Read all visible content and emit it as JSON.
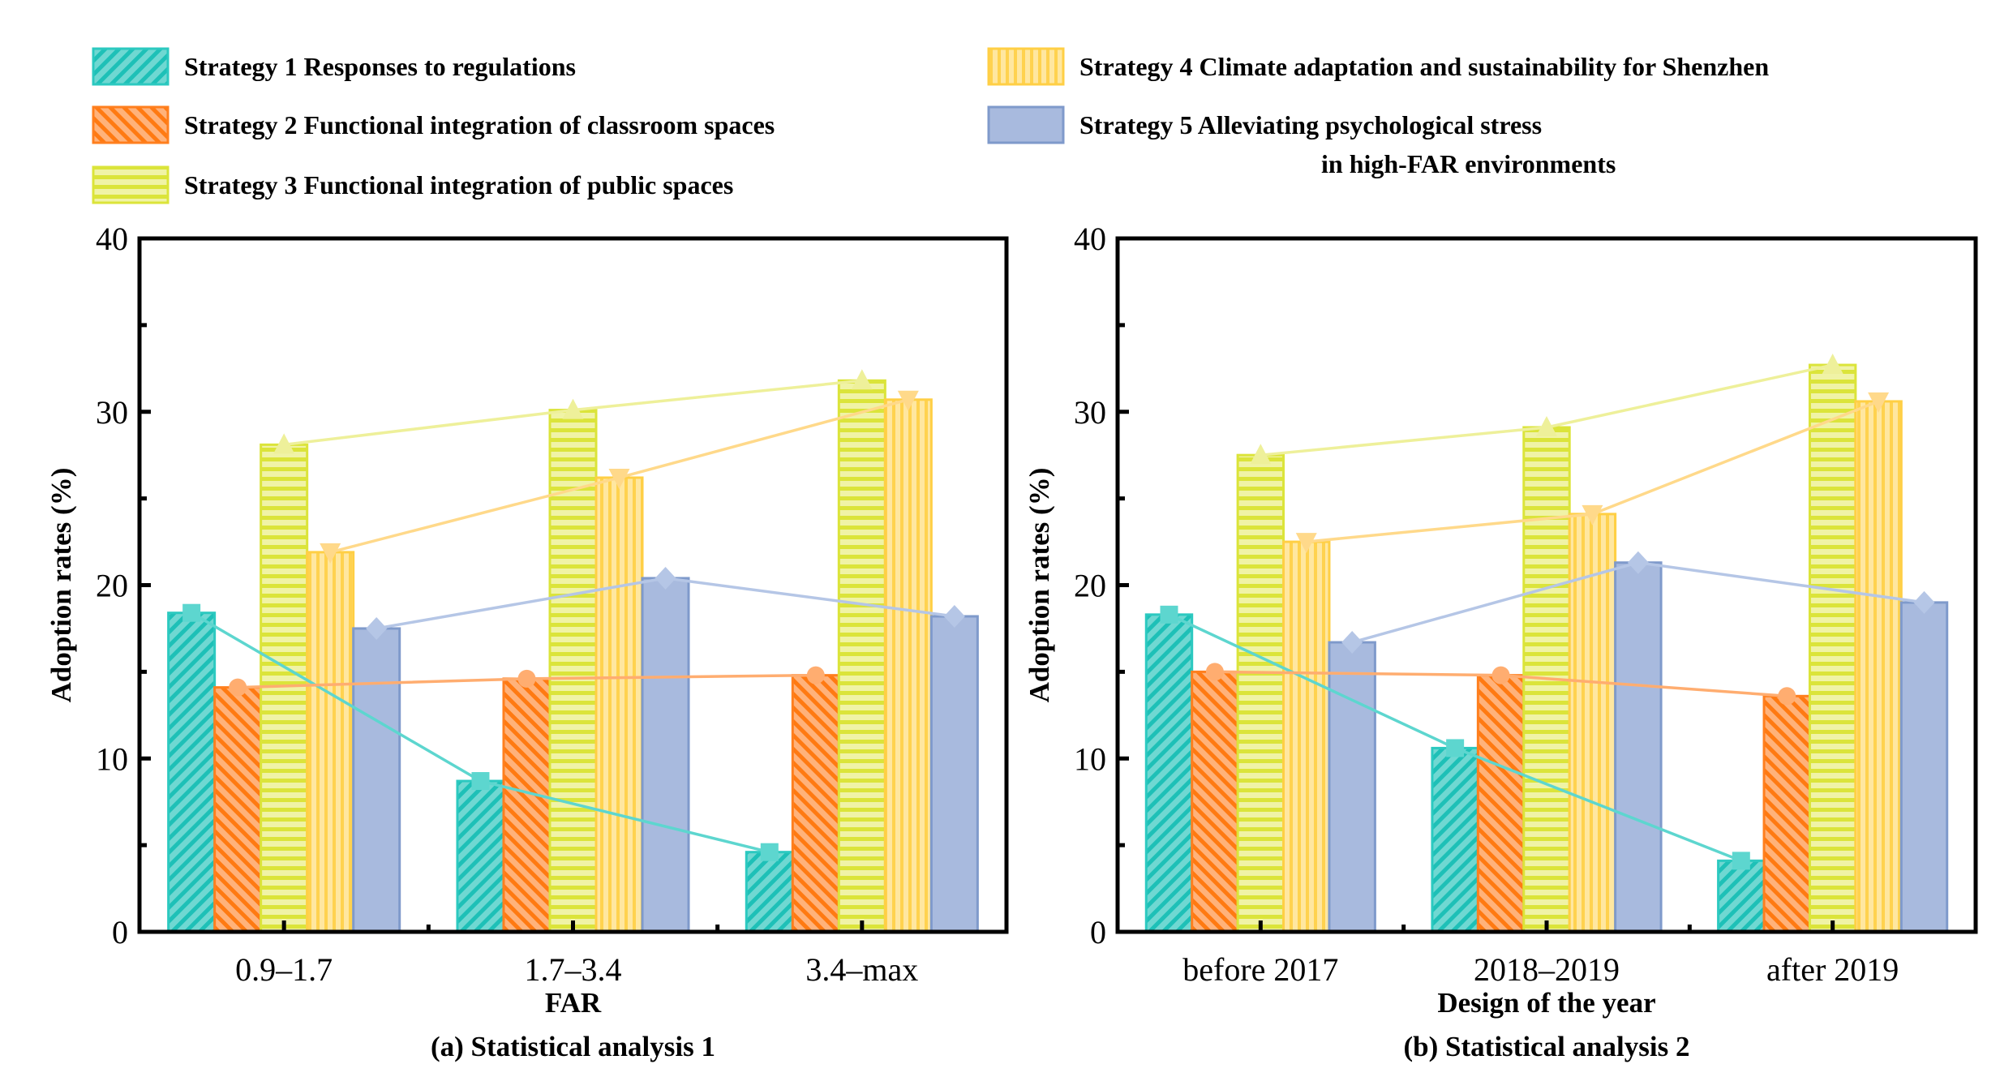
{
  "legend": [
    {
      "label": "Strategy 1 Responses to regulations",
      "color": "#2cc9c0",
      "pattern": "diagonal-forward",
      "marker": "square"
    },
    {
      "label": "Strategy 2 Functional integration of classroom spaces",
      "color": "#ff7f1e",
      "pattern": "diagonal-backward",
      "marker": "circle"
    },
    {
      "label": "Strategy 3 Functional integration of public spaces",
      "color": "#dbe43a",
      "pattern": "horizontal",
      "marker": "triangle-up"
    },
    {
      "label": "Strategy 4 Climate adaptation and sustainability for Shenzhen",
      "color": "#ffd24f",
      "pattern": "vertical",
      "marker": "triangle-down"
    },
    {
      "label": "Strategy 5 Alleviating psychological stress",
      "label2": "in high-FAR environments",
      "color": "#a8bade",
      "pattern": "solid",
      "marker": "diamond"
    }
  ],
  "chart_data": [
    {
      "type": "bar",
      "caption": "(a) Statistical analysis 1",
      "xlabel": "FAR",
      "ylabel": "Adoption rates (%)",
      "ylim": [
        0,
        40
      ],
      "yticks": [
        "0",
        "10",
        "20",
        "30",
        "40"
      ],
      "categories": [
        "0.9–1.7",
        "1.7–3.4",
        "3.4–max"
      ],
      "series": [
        {
          "name": "Strategy 1 Responses to regulations",
          "values": [
            18.4,
            8.7,
            4.6
          ]
        },
        {
          "name": "Strategy 2 Functional integration of classroom spaces",
          "values": [
            14.1,
            14.6,
            14.8
          ]
        },
        {
          "name": "Strategy 3 Functional integration of public spaces",
          "values": [
            28.1,
            30.1,
            31.8
          ]
        },
        {
          "name": "Strategy 4 Climate adaptation and sustainability for Shenzhen",
          "values": [
            21.9,
            26.2,
            30.7
          ]
        },
        {
          "name": "Strategy 5 Alleviating psychological stress in high-FAR environments",
          "values": [
            17.5,
            20.4,
            18.2
          ]
        }
      ]
    },
    {
      "type": "bar",
      "caption": "(b) Statistical analysis 2",
      "xlabel": "Design of the year",
      "ylabel": "Adoption rates (%)",
      "ylim": [
        0,
        40
      ],
      "yticks": [
        "0",
        "10",
        "20",
        "30",
        "40"
      ],
      "categories": [
        "before 2017",
        "2018–2019",
        "after 2019"
      ],
      "series": [
        {
          "name": "Strategy 1 Responses to regulations",
          "values": [
            18.3,
            10.6,
            4.1
          ]
        },
        {
          "name": "Strategy 2 Functional integration of classroom spaces",
          "values": [
            15.0,
            14.8,
            13.6
          ]
        },
        {
          "name": "Strategy 3 Functional integration of public spaces",
          "values": [
            27.5,
            29.1,
            32.7
          ]
        },
        {
          "name": "Strategy 4 Climate adaptation and sustainability for Shenzhen",
          "values": [
            22.5,
            24.1,
            30.6
          ]
        },
        {
          "name": "Strategy 5 Alleviating psychological stress in high-FAR environments",
          "values": [
            16.7,
            21.3,
            19.0
          ]
        }
      ]
    }
  ]
}
